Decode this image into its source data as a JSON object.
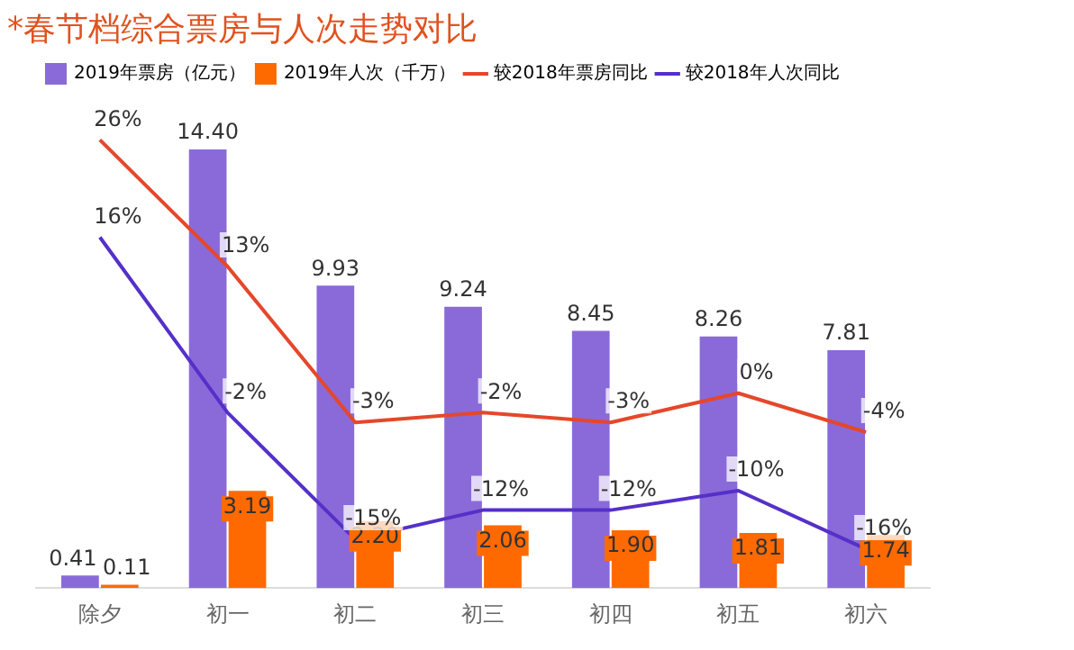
{
  "chart_data": {
    "type": "bar",
    "title": "*春节档综合票房与人次走势对比",
    "categories": [
      "除夕",
      "初一",
      "初二",
      "初三",
      "初四",
      "初五",
      "初六"
    ],
    "series": [
      {
        "name": "2019年票房（亿元）",
        "color": "#8a6ad9",
        "values": [
          0.41,
          14.4,
          9.93,
          9.24,
          8.45,
          8.26,
          7.81
        ],
        "value_labels": [
          "0.41",
          "14.40",
          "9.93",
          "9.24",
          "8.45",
          "8.26",
          "7.81"
        ]
      },
      {
        "name": "2019年人次（千万）",
        "color": "#ff6a00",
        "values": [
          0.11,
          3.19,
          2.2,
          2.06,
          1.9,
          1.81,
          1.74
        ],
        "value_labels": [
          "0.11",
          "3.19",
          "2.20",
          "2.06",
          "1.90",
          "1.81",
          "1.74"
        ]
      },
      {
        "name": "较2018年票房同比",
        "type": "line",
        "axis": "y2",
        "color": "#e5472b",
        "values": [
          26,
          13,
          -3,
          -2,
          -3,
          0,
          -4
        ],
        "value_labels": [
          "26%",
          "13%",
          "-3%",
          "-2%",
          "-3%",
          "0%",
          "-4%"
        ]
      },
      {
        "name": "较2018年人次同比",
        "type": "line",
        "axis": "y2",
        "color": "#5530c8",
        "values": [
          16,
          -2,
          -15,
          -12,
          -12,
          -10,
          -16
        ],
        "value_labels": [
          "16%",
          "-2%",
          "-15%",
          "-12%",
          "-12%",
          "-10%",
          "-16%"
        ]
      }
    ],
    "tick_labels": "x",
    "grid": false,
    "legend": "top left",
    "marker": "none"
  }
}
